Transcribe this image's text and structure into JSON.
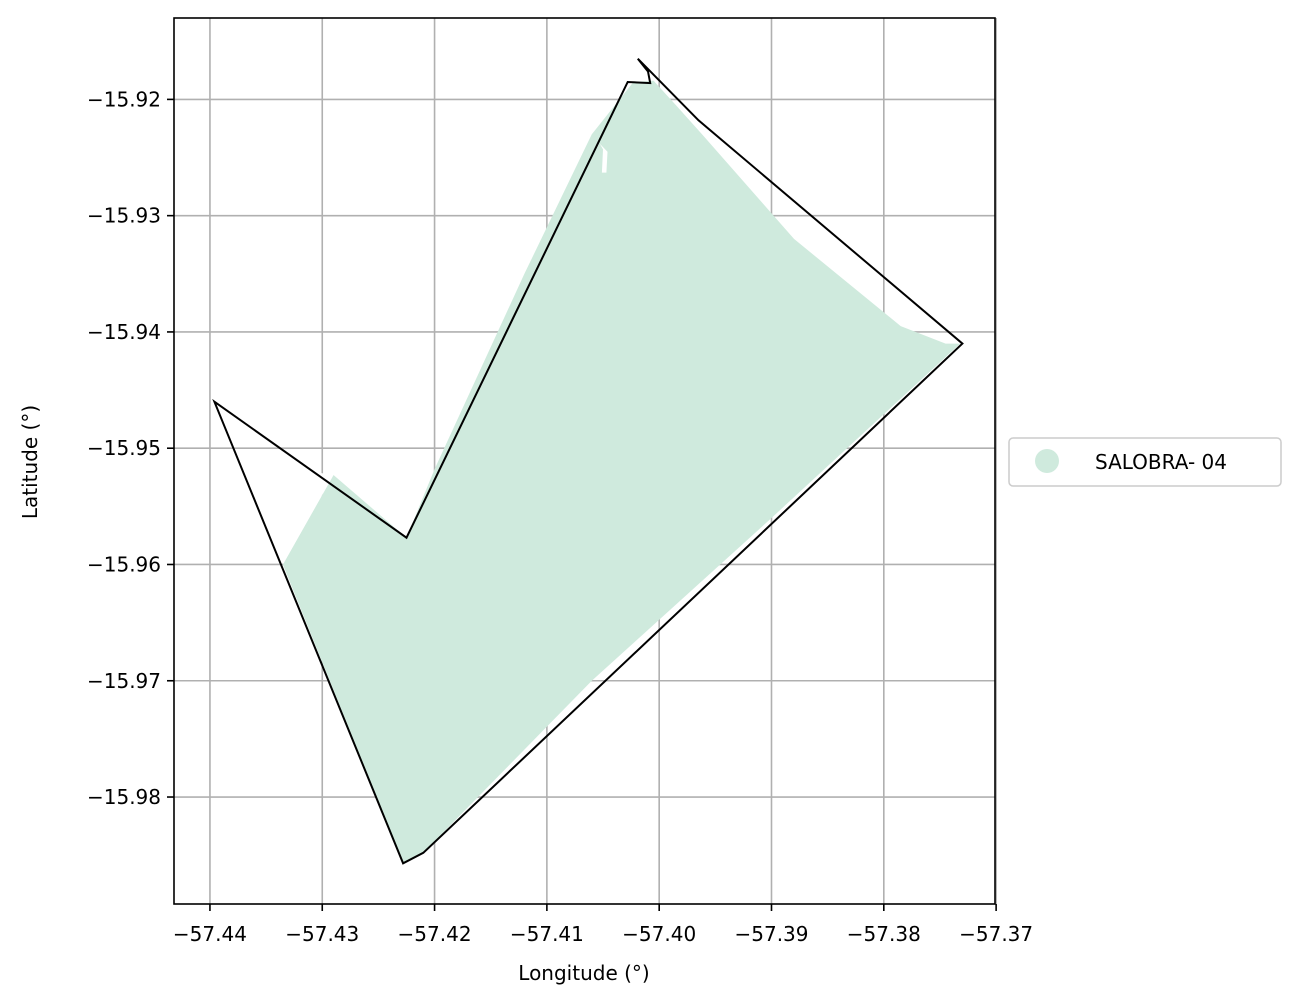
{
  "map": {
    "xlabel": "Longitude (°)",
    "ylabel": "Latitude (°)",
    "xlim": [
      -57.4432,
      -57.3701
    ],
    "ylim": [
      -15.9892,
      -15.913
    ],
    "grid": true,
    "x_ticks": [
      {
        "value": -57.44,
        "label": "−57.44"
      },
      {
        "value": -57.43,
        "label": "−57.43"
      },
      {
        "value": -57.42,
        "label": "−57.42"
      },
      {
        "value": -57.41,
        "label": "−57.41"
      },
      {
        "value": -57.4,
        "label": "−57.40"
      },
      {
        "value": -57.39,
        "label": "−57.39"
      },
      {
        "value": -57.38,
        "label": "−57.38"
      },
      {
        "value": -57.37,
        "label": "−57.37"
      }
    ],
    "y_ticks": [
      {
        "value": -15.92,
        "label": "−15.92"
      },
      {
        "value": -15.93,
        "label": "−15.93"
      },
      {
        "value": -15.94,
        "label": "−15.94"
      },
      {
        "value": -15.95,
        "label": "−15.95"
      },
      {
        "value": -15.96,
        "label": "−15.96"
      },
      {
        "value": -15.97,
        "label": "−15.97"
      },
      {
        "value": -15.98,
        "label": "−15.98"
      }
    ],
    "colors": {
      "fill": "#cfeadd",
      "boundary": "#000000",
      "grid": "#b0b0b0",
      "background": "#ffffff"
    },
    "legend": {
      "placement": "outside-right",
      "entries": [
        {
          "label": "SALOBRA- 04",
          "color": "#cfeadd"
        }
      ]
    },
    "layers": {
      "filled_area": {
        "name": "SALOBRA- 04",
        "coordinates": [
          [
            -57.4023,
            -15.9185
          ],
          [
            -57.4005,
            -15.9184
          ],
          [
            -57.3985,
            -15.9205
          ],
          [
            -57.396,
            -15.9232
          ],
          [
            -57.388,
            -15.932
          ],
          [
            -57.3785,
            -15.9395
          ],
          [
            -57.3745,
            -15.941
          ],
          [
            -57.3732,
            -15.941
          ],
          [
            -57.39,
            -15.956
          ],
          [
            -57.406,
            -15.97
          ],
          [
            -57.421,
            -15.9848
          ],
          [
            -57.4228,
            -15.9857
          ],
          [
            -57.4335,
            -15.96
          ],
          [
            -57.429,
            -15.9523
          ],
          [
            -57.426,
            -15.9548
          ],
          [
            -57.4225,
            -15.9577
          ],
          [
            -57.42,
            -15.9518
          ],
          [
            -57.412,
            -15.935
          ],
          [
            -57.406,
            -15.923
          ]
        ]
      },
      "gaps": [
        {
          "name": "west-notch",
          "coordinates": [
            [
              -57.4335,
              -15.96
            ],
            [
              -57.4318,
              -15.9553
            ],
            [
              -57.4313,
              -15.954
            ],
            [
              -57.4317,
              -15.953
            ],
            [
              -57.4318,
              -15.9522
            ],
            [
              -57.431,
              -15.952
            ],
            [
              -57.429,
              -15.9523
            ]
          ]
        },
        {
          "name": "north-notch",
          "coordinates": [
            [
              -57.4053,
              -15.9238
            ],
            [
              -57.4046,
              -15.9245
            ],
            [
              -57.4047,
              -15.9263
            ],
            [
              -57.4051,
              -15.9263
            ],
            [
              -57.405,
              -15.9243
            ]
          ]
        }
      ],
      "boundary": {
        "coordinates": [
          [
            -57.4396,
            -15.946
          ],
          [
            -57.4225,
            -15.9577
          ],
          [
            -57.4028,
            -15.9185
          ],
          [
            -57.4008,
            -15.9186
          ],
          [
            -57.401,
            -15.9176
          ],
          [
            -57.4019,
            -15.9165
          ],
          [
            -57.3965,
            -15.9218
          ],
          [
            -57.373,
            -15.941
          ],
          [
            -57.421,
            -15.9848
          ],
          [
            -57.4228,
            -15.9857
          ]
        ]
      }
    }
  }
}
